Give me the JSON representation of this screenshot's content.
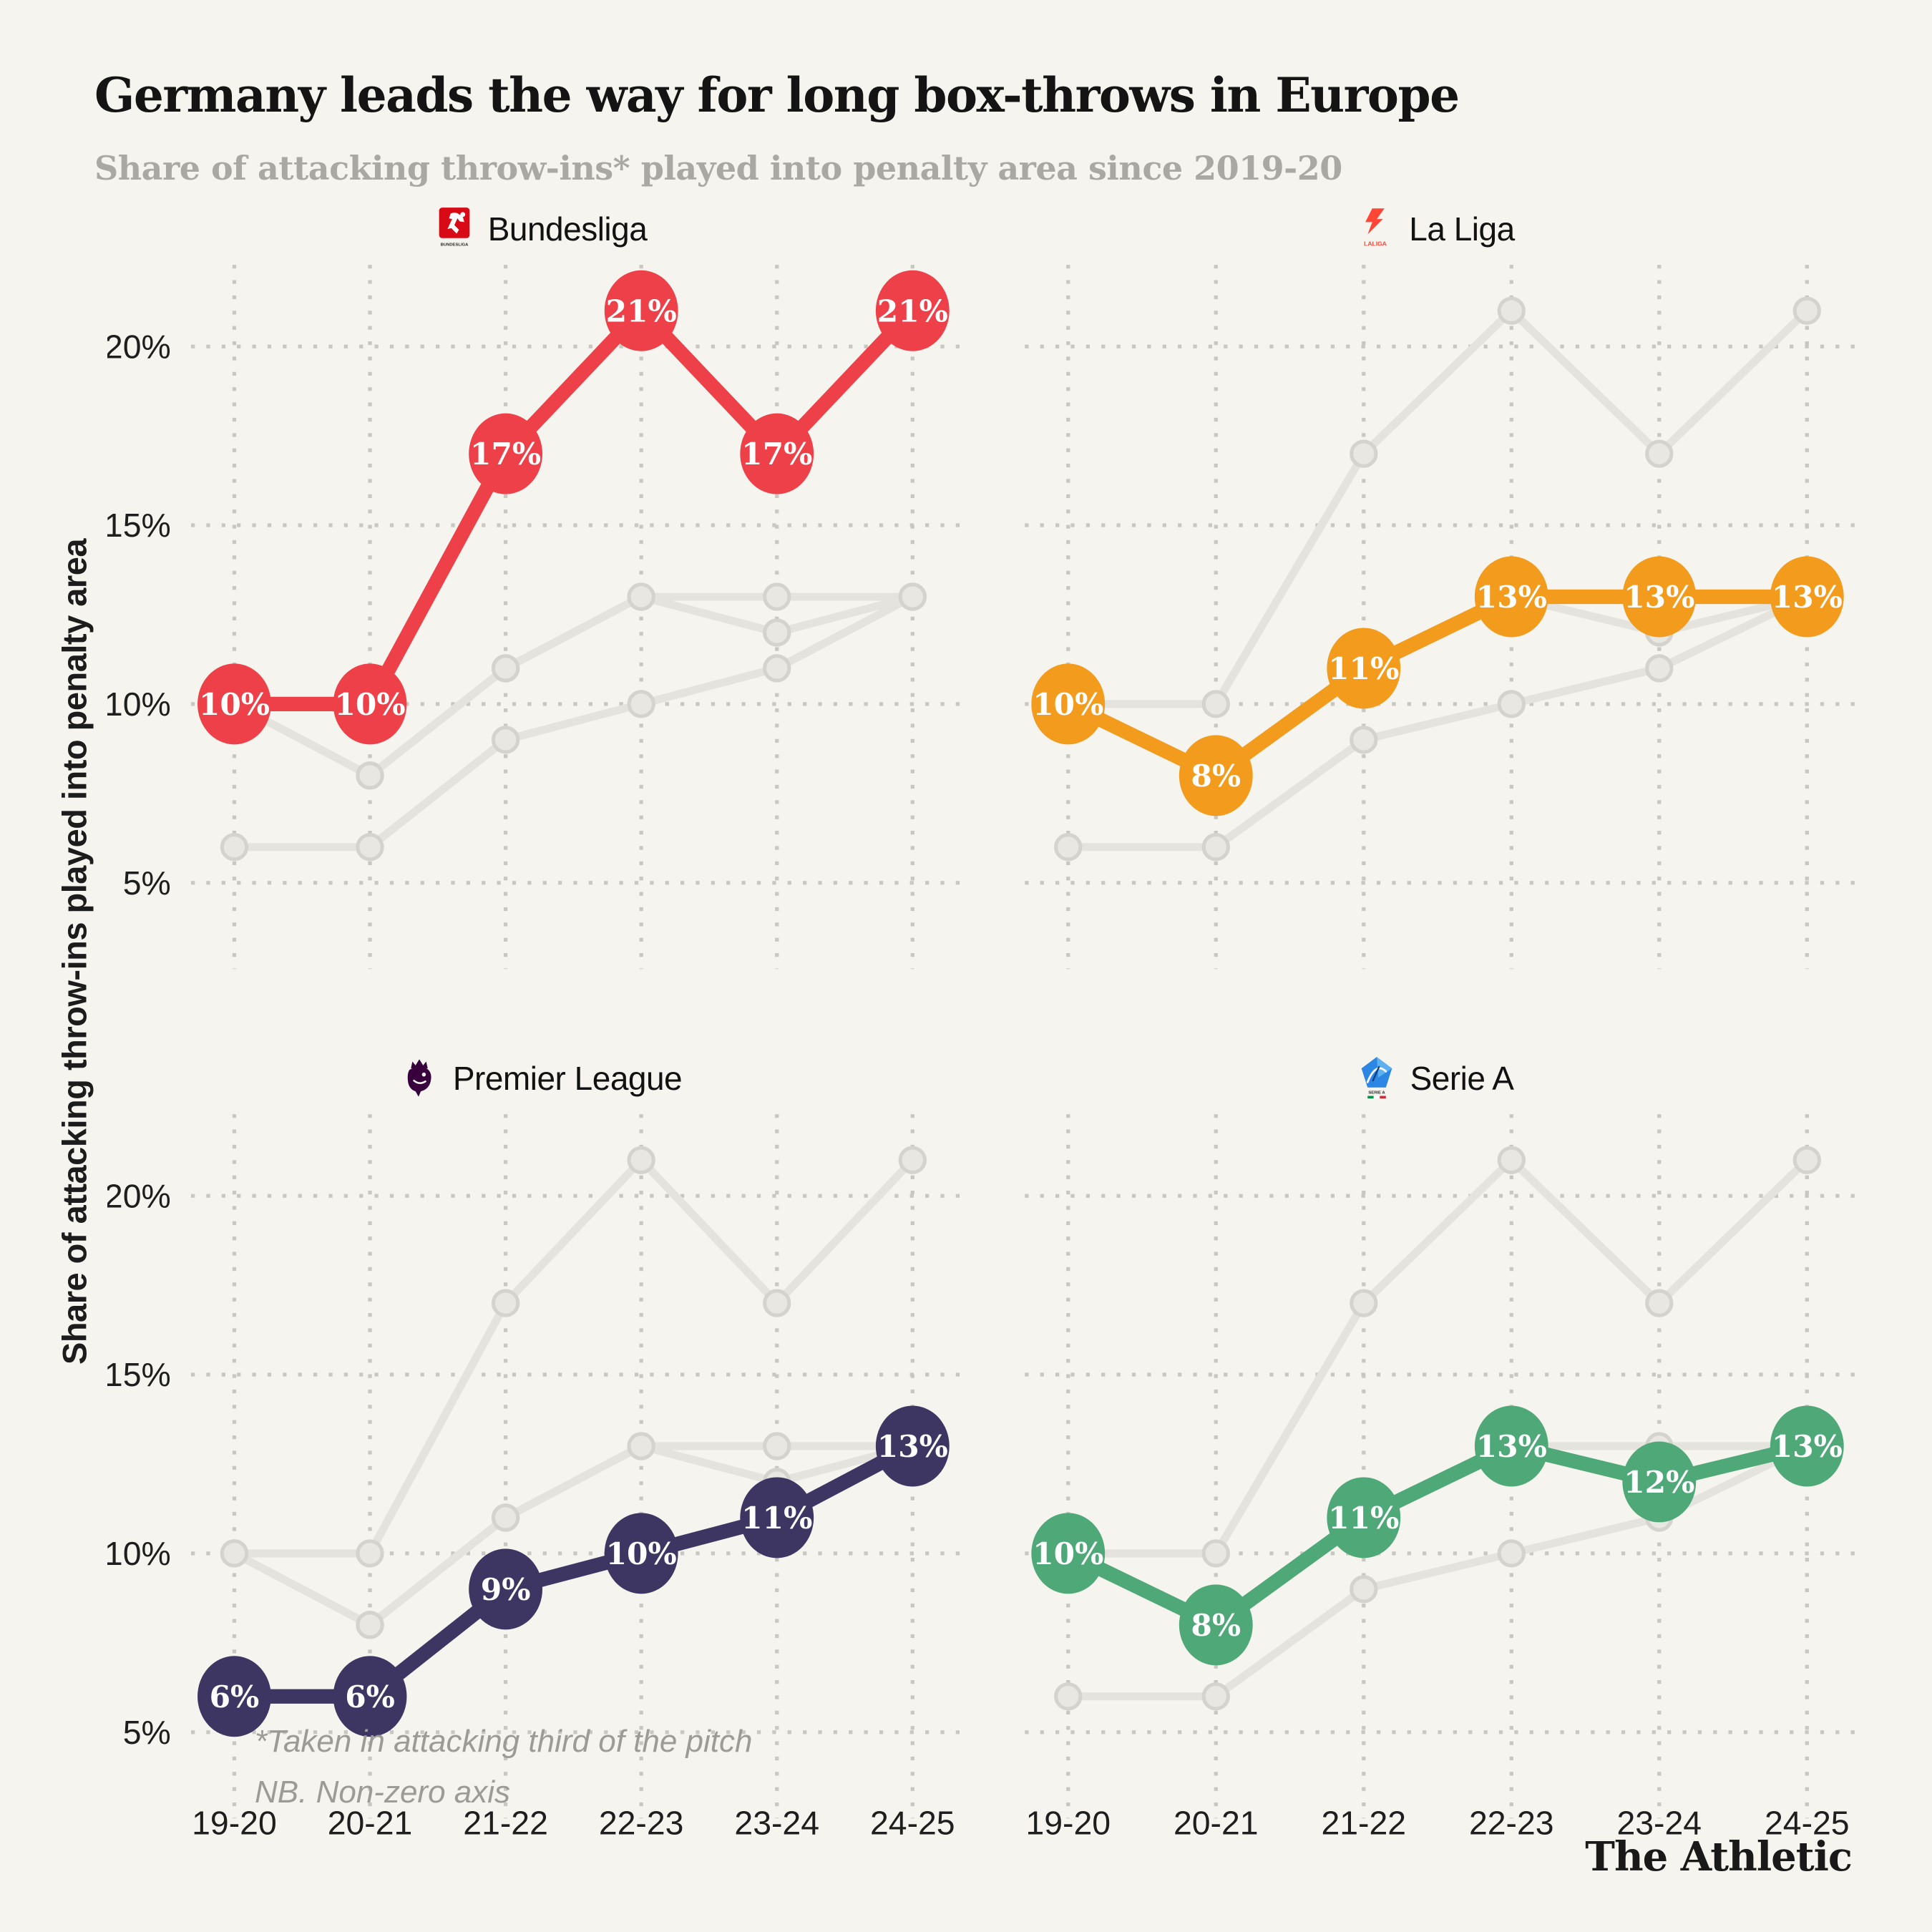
{
  "title": "Germany leads the way for long box-throws in Europe",
  "subtitle": "Share of attacking throw-ins* played into penalty area since 2019-20",
  "y_axis_title": "Share of attacking throw-ins played into penalty area",
  "footnote": {
    "line1": "*Taken in attacking third of the pitch",
    "line2": "NB. Non-zero axis"
  },
  "credit": "The Athletic",
  "colors": {
    "background": "#f5f4ee",
    "bundesliga_red": "#ee4048",
    "laliga_orange": "#f29b1d",
    "premier_league_navy": "#3d3663",
    "serie_a_green": "#4fa877",
    "muted_line_gray": "#e4e3dd",
    "grid_gray": "#c8c7c1"
  },
  "chart_data": {
    "type": "line",
    "layout": "small-multiples-2x2",
    "grid": true,
    "data_labels": true,
    "categories": [
      "19-20",
      "20-21",
      "21-22",
      "22-23",
      "23-24",
      "24-25"
    ],
    "y_ticks": [
      {
        "value": 20,
        "label": "20%"
      },
      {
        "value": 15,
        "label": "15%"
      },
      {
        "value": 10,
        "label": "10%"
      },
      {
        "value": 5,
        "label": "5%"
      }
    ],
    "ylim": [
      3.8,
      21.8
    ],
    "ylabel": "Share of attacking throw-ins played into penalty area",
    "series": [
      {
        "name": "Bundesliga",
        "values": [
          10,
          10,
          17,
          21,
          17,
          21
        ],
        "color": "#ee4048"
      },
      {
        "name": "La Liga",
        "values": [
          10,
          8,
          11,
          13,
          13,
          13
        ],
        "color": "#f29b1d"
      },
      {
        "name": "Premier League",
        "values": [
          6,
          6,
          9,
          10,
          11,
          13
        ],
        "color": "#3d3663"
      },
      {
        "name": "Serie A",
        "values": [
          10,
          8,
          11,
          13,
          12,
          13
        ],
        "color": "#4fa877"
      }
    ],
    "panels": [
      {
        "league": "Bundesliga",
        "series_index": 0,
        "show_y_labels": true,
        "show_x_labels": false,
        "logo_text": "BUNDESLIGA"
      },
      {
        "league": "La Liga",
        "series_index": 1,
        "show_y_labels": false,
        "show_x_labels": false,
        "logo_text": "LALIGA"
      },
      {
        "league": "Premier League",
        "series_index": 2,
        "show_y_labels": true,
        "show_x_labels": true,
        "logo_text": ""
      },
      {
        "league": "Serie A",
        "series_index": 3,
        "show_y_labels": false,
        "show_x_labels": true,
        "logo_text": "SERIE A"
      }
    ],
    "note": "Each panel highlights one league; the other three leagues are shown as gray background lines"
  }
}
